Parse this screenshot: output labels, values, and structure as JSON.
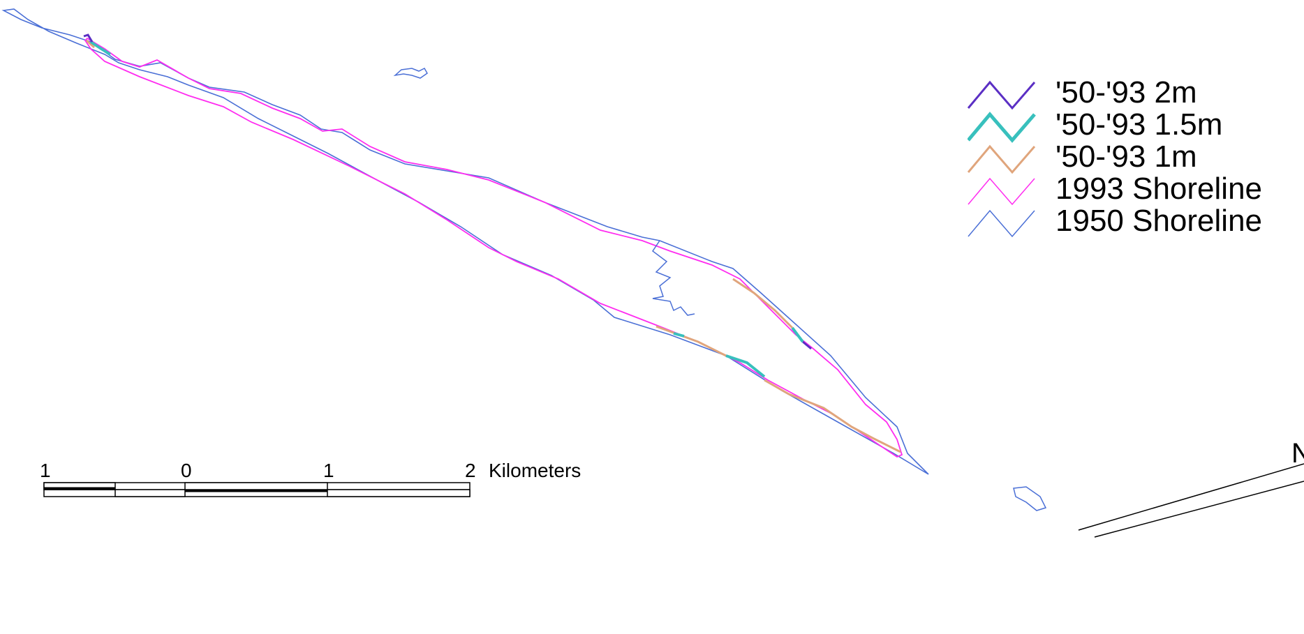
{
  "legend": {
    "items": [
      {
        "label": "'50-'93 2m",
        "color": "#5b2fc4",
        "weight": "thin-bold"
      },
      {
        "label": "'50-'93 1.5m",
        "color": "#38c0bd",
        "weight": "bold"
      },
      {
        "label": "'50-'93 1m",
        "color": "#e0a57c",
        "weight": "medium"
      },
      {
        "label": "1993 Shoreline",
        "color": "#ff2cf0",
        "weight": "thin"
      },
      {
        "label": "1950 Shoreline",
        "color": "#4a6fd6",
        "weight": "thin"
      }
    ]
  },
  "scale_bar": {
    "tick_labels": [
      "1",
      "0",
      "1",
      "2"
    ],
    "unit": "Kilometers"
  },
  "north_arrow": {
    "label": "N"
  },
  "colors": {
    "shoreline_1950": "#4a6fd6",
    "shoreline_1993": "#ff2cf0",
    "change_2m": "#5b2fc4",
    "change_1_5m": "#38c0bd",
    "change_1m": "#e0a57c"
  }
}
